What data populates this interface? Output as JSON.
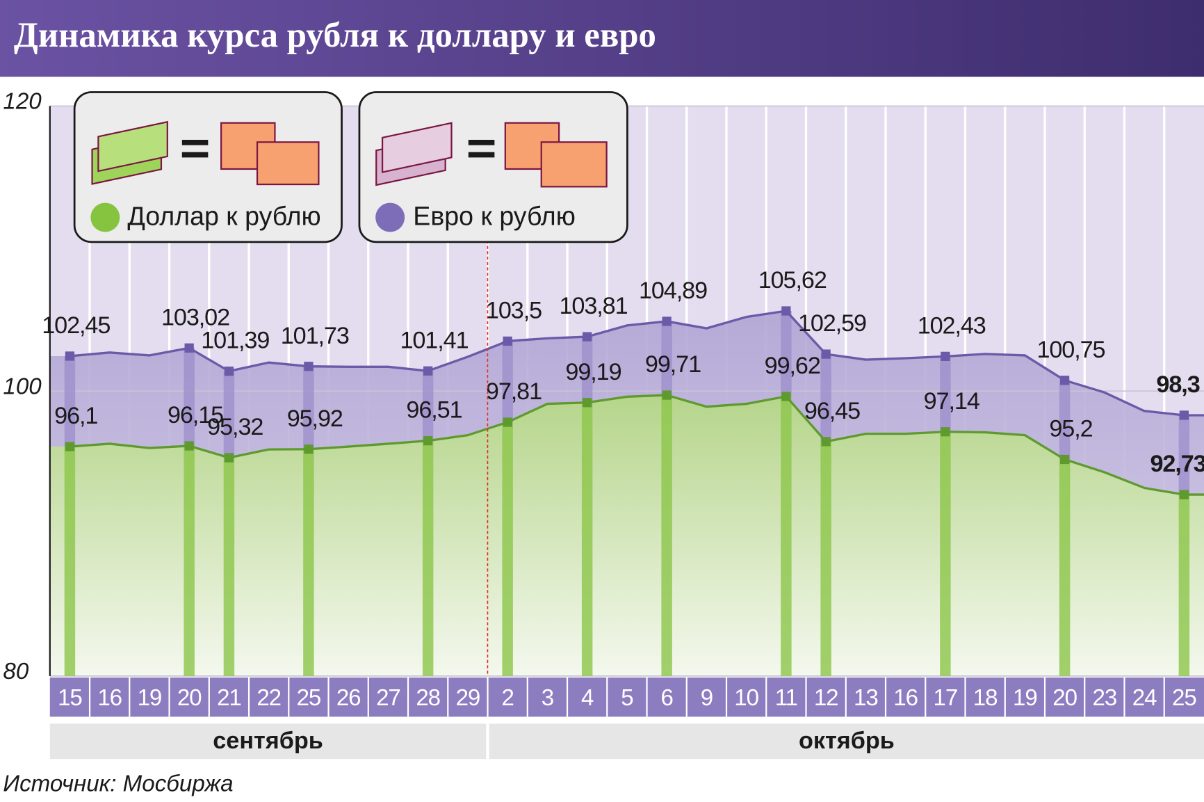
{
  "chart_data": {
    "type": "line",
    "title": "Динамика курса рубля к доллару и евро",
    "source": "Источник: Мосбиржа",
    "categories": [
      "15",
      "16",
      "19",
      "20",
      "21",
      "22",
      "25",
      "26",
      "27",
      "28",
      "29",
      "2",
      "3",
      "4",
      "5",
      "6",
      "9",
      "10",
      "11",
      "12",
      "13",
      "16",
      "17",
      "18",
      "19",
      "20",
      "23",
      "24",
      "25"
    ],
    "months": [
      "сентябрь",
      "октябрь"
    ],
    "series": [
      {
        "name": "Евро к рублю",
        "color": "#6a5aa8",
        "area_color": "#b3a8d6",
        "values": [
          102.45,
          102.7,
          102.5,
          103.02,
          101.39,
          102.0,
          101.73,
          101.7,
          101.7,
          101.41,
          102.4,
          103.5,
          103.7,
          103.81,
          104.6,
          104.89,
          104.4,
          105.2,
          105.62,
          102.59,
          102.2,
          102.3,
          102.43,
          102.6,
          102.5,
          100.75,
          99.9,
          98.6,
          98.3
        ],
        "value_labels": [
          "102,45",
          null,
          null,
          "103,02",
          "101,39",
          null,
          "101,73",
          null,
          null,
          "101,41",
          null,
          "103,5",
          null,
          "103,81",
          null,
          "104,89",
          null,
          null,
          "105,62",
          "102,59",
          null,
          null,
          "102,43",
          null,
          null,
          "100,75",
          null,
          null,
          "98,3"
        ]
      },
      {
        "name": "Доллар к рублю",
        "color": "#5f9a2e",
        "area_color": "#b9d88f",
        "values": [
          96.1,
          96.3,
          96.0,
          96.15,
          95.32,
          95.9,
          95.92,
          96.1,
          96.3,
          96.51,
          96.9,
          97.81,
          99.1,
          99.19,
          99.6,
          99.71,
          98.9,
          99.1,
          99.62,
          96.45,
          97.0,
          97.0,
          97.14,
          97.1,
          96.9,
          95.2,
          94.3,
          93.2,
          92.73
        ],
        "value_labels": [
          "96,1",
          null,
          null,
          "96,15",
          "95,32",
          null,
          "95,92",
          null,
          null,
          "96,51",
          null,
          "97,81",
          null,
          "99,19",
          null,
          "99,71",
          null,
          null,
          "99,62",
          "96,45",
          null,
          null,
          "97,14",
          null,
          null,
          "95,2",
          null,
          null,
          "92,73"
        ]
      }
    ],
    "highlight_color": "#7a1642",
    "ylim": [
      80,
      120
    ],
    "yticks": [
      80,
      100,
      120
    ],
    "grid": true
  }
}
